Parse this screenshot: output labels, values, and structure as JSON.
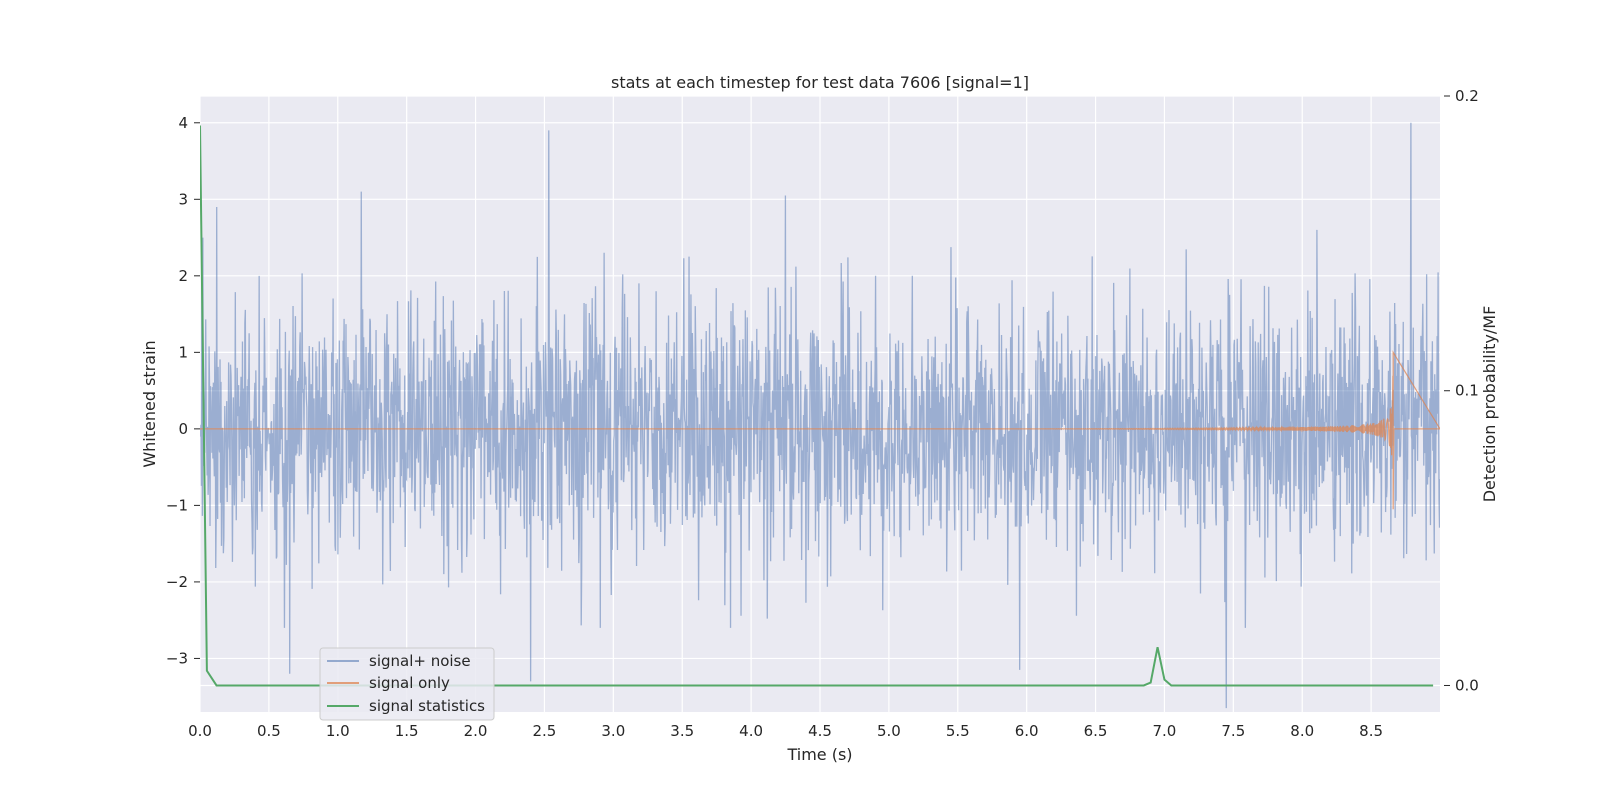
{
  "chart_data": {
    "type": "line",
    "title": "stats at each timestep for test data 7606 [signal=1]",
    "xlabel": "Time (s)",
    "ylabel": "Whitened strain",
    "y2label": "Detection probability/MF",
    "xlim": [
      0,
      9.0
    ],
    "ylim": [
      -3.7,
      4.35
    ],
    "y2lim": [
      -0.009,
      0.2
    ],
    "x_ticks": [
      "0.0",
      "0.5",
      "1.0",
      "1.5",
      "2.0",
      "2.5",
      "3.0",
      "3.5",
      "4.0",
      "4.5",
      "5.0",
      "5.5",
      "6.0",
      "6.5",
      "7.0",
      "7.5",
      "8.0",
      "8.5"
    ],
    "y_ticks": [
      "4",
      "3",
      "2",
      "1",
      "0",
      "−1",
      "−2",
      "−3"
    ],
    "y2_ticks": [
      "0.2",
      "0.1",
      "0.0"
    ],
    "grid": true,
    "legend_position": "lower-left",
    "colors": {
      "signal_noise": "#4c72b0",
      "signal_only": "#dd8452",
      "signal_statistics": "#55a868",
      "plot_bg": "#eaeaf2",
      "grid": "#ffffff"
    },
    "series": [
      {
        "name": "signal+ noise",
        "axis": "left",
        "description_values": "noise-like whitened strain, roughly within -3.3..4.0",
        "peaks": [
          {
            "x": 0.02,
            "y": 2.5
          },
          {
            "x": 0.12,
            "y": 2.9
          },
          {
            "x": 0.43,
            "y": 2.0
          },
          {
            "x": 0.65,
            "y": -3.2
          },
          {
            "x": 1.17,
            "y": 3.1
          },
          {
            "x": 2.4,
            "y": -3.3
          },
          {
            "x": 2.53,
            "y": 3.9
          },
          {
            "x": 4.25,
            "y": 3.05
          },
          {
            "x": 5.95,
            "y": -3.15
          },
          {
            "x": 7.45,
            "y": -3.65
          },
          {
            "x": 8.79,
            "y": 4.0
          }
        ]
      },
      {
        "name": "signal only",
        "axis": "left",
        "chirp_start_x": 0.0,
        "chirp_end_x": 8.66,
        "max_amplitude": 1.0,
        "min_amplitude": -1.05
      },
      {
        "name": "signal statistics",
        "axis": "right",
        "x": [
          0.0,
          0.05,
          0.12,
          6.85,
          6.9,
          6.95,
          7.0,
          7.05,
          7.1,
          7.45,
          8.95
        ],
        "values": [
          0.19,
          0.005,
          0.0,
          0.0,
          0.001,
          0.013,
          0.002,
          0.0,
          0.0,
          0.0,
          0.0
        ]
      }
    ]
  }
}
